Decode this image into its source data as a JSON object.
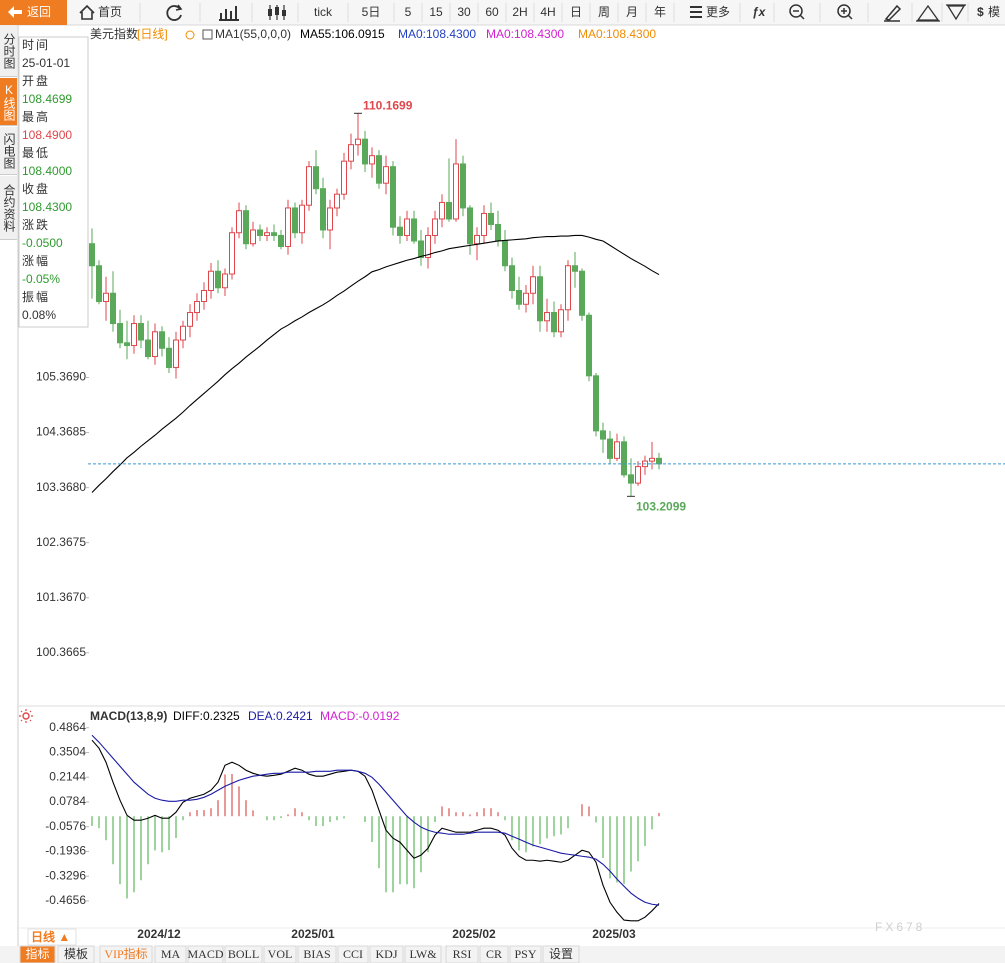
{
  "toolbar": {
    "back": "返回",
    "home": "首页",
    "periods": [
      "tick",
      "5日",
      "5",
      "15",
      "30",
      "60",
      "2H",
      "4H",
      "日",
      "周",
      "月",
      "年"
    ],
    "more": "更多",
    "extra": "模"
  },
  "side_tabs": [
    "分时图",
    "K线图",
    "闪电图",
    "合约资料"
  ],
  "side_tab_active": 1,
  "info_panel": [
    {
      "label": "时间",
      "value": "25-01-01",
      "color": "#333333"
    },
    {
      "label": "开盘",
      "value": "108.4699",
      "color": "#2e9a2e"
    },
    {
      "label": "最高",
      "value": "108.4900",
      "color": "#e0474c"
    },
    {
      "label": "最低",
      "value": "108.4000",
      "color": "#2e9a2e"
    },
    {
      "label": "收盘",
      "value": "108.4300",
      "color": "#2e9a2e"
    },
    {
      "label": "涨跌",
      "value": "-0.0500",
      "color": "#2e9a2e"
    },
    {
      "label": "涨幅",
      "value": "-0.05%",
      "color": "#2e9a2e"
    },
    {
      "label": "振幅",
      "value": "0.08%",
      "color": "#333333"
    }
  ],
  "chart_data": [
    {
      "type": "candlestick",
      "title": "美元指数",
      "period_label": "[日线]",
      "indicator": "MA1(55,0,0,0)",
      "up_color": "#e0474c",
      "down_color": "#5aa85a",
      "open": [
        107.8,
        107.4,
        106.75,
        106.9,
        106.35,
        106.0,
        105.95,
        106.35,
        106.05,
        105.75,
        106.2,
        105.9,
        105.55,
        106.05,
        106.3,
        106.55,
        106.75,
        106.95,
        107.3,
        107.0,
        107.25,
        108.0,
        108.4,
        107.8,
        108.05,
        107.95,
        108.0,
        107.95,
        107.75,
        108.45,
        108.0,
        108.5,
        109.2,
        108.8,
        108.05,
        108.45,
        108.7,
        109.3,
        109.6,
        109.7,
        109.25,
        109.4,
        108.9,
        109.2,
        108.1,
        107.95,
        108.25,
        107.85,
        107.55,
        107.95,
        108.25,
        108.55,
        108.25,
        109.25,
        108.45,
        107.8,
        107.95,
        108.35,
        108.15,
        107.85,
        107.4,
        106.95,
        106.7,
        106.9,
        107.2,
        106.4,
        106.55,
        106.2,
        106.6,
        107.4,
        107.3,
        106.5,
        105.4,
        104.4,
        104.25,
        103.9,
        104.2,
        103.6,
        103.45,
        103.75,
        103.85,
        103.9
      ],
      "high": [
        108.08,
        107.5,
        107.2,
        107.3,
        106.6,
        106.4,
        106.5,
        106.5,
        106.4,
        106.35,
        106.3,
        106.1,
        106.2,
        106.4,
        106.7,
        106.9,
        107.1,
        107.45,
        107.5,
        107.35,
        108.1,
        108.55,
        108.5,
        108.2,
        108.15,
        108.1,
        108.15,
        108.05,
        108.6,
        108.55,
        108.6,
        109.3,
        109.5,
        109.0,
        108.6,
        108.8,
        109.45,
        109.8,
        110.1699,
        109.85,
        109.55,
        109.5,
        109.4,
        109.3,
        108.3,
        108.4,
        108.4,
        108.05,
        108.1,
        108.4,
        108.7,
        109.35,
        109.7,
        109.4,
        108.5,
        108.1,
        108.5,
        108.55,
        108.4,
        108.05,
        107.55,
        107.2,
        107.05,
        107.4,
        107.4,
        106.8,
        106.75,
        106.7,
        107.5,
        107.65,
        107.35,
        106.55,
        105.45,
        104.55,
        104.4,
        104.35,
        104.3,
        103.9,
        103.85,
        103.95,
        104.2,
        104.0
      ],
      "low": [
        106.8,
        106.7,
        106.4,
        106.2,
        105.9,
        105.7,
        105.8,
        105.9,
        105.7,
        105.6,
        105.75,
        105.45,
        105.35,
        105.9,
        106.1,
        106.4,
        106.6,
        106.8,
        106.9,
        106.85,
        107.15,
        107.9,
        107.7,
        107.75,
        107.85,
        107.85,
        107.85,
        107.7,
        107.6,
        107.9,
        107.8,
        108.4,
        108.7,
        107.9,
        107.7,
        108.3,
        108.6,
        109.15,
        109.4,
        109.1,
        109.0,
        108.8,
        108.7,
        107.95,
        107.8,
        107.85,
        107.8,
        107.4,
        107.35,
        107.8,
        108.1,
        108.2,
        108.2,
        108.3,
        107.6,
        107.5,
        107.8,
        108.05,
        107.75,
        107.3,
        106.8,
        106.6,
        106.55,
        106.7,
        106.2,
        106.2,
        106.1,
        106.1,
        106.4,
        107.0,
        106.4,
        105.3,
        104.3,
        104.0,
        103.8,
        103.85,
        103.55,
        103.2099,
        103.4,
        103.6,
        103.7,
        103.7
      ],
      "close": [
        107.4,
        106.75,
        106.9,
        106.35,
        106.0,
        105.95,
        106.35,
        106.05,
        105.75,
        106.2,
        105.9,
        105.55,
        106.05,
        106.3,
        106.55,
        106.75,
        106.95,
        107.3,
        107.0,
        107.25,
        108.0,
        108.4,
        107.8,
        108.05,
        107.95,
        108.0,
        107.95,
        107.75,
        108.45,
        108.0,
        108.5,
        109.2,
        108.8,
        108.05,
        108.45,
        108.7,
        109.3,
        109.6,
        109.7,
        109.25,
        109.4,
        108.9,
        109.2,
        108.1,
        107.95,
        108.25,
        107.85,
        107.55,
        107.95,
        108.25,
        108.55,
        108.25,
        109.25,
        108.45,
        107.8,
        107.95,
        108.35,
        108.15,
        107.85,
        107.4,
        106.95,
        106.7,
        106.9,
        107.2,
        106.4,
        106.55,
        106.2,
        106.6,
        107.4,
        107.3,
        106.5,
        105.4,
        104.4,
        104.25,
        103.9,
        104.2,
        103.6,
        103.45,
        103.75,
        103.85,
        103.9,
        103.8
      ],
      "series": [
        {
          "name": "MA55:106.0915",
          "color": "#000000",
          "values": [
            103.28,
            103.41,
            103.53,
            103.66,
            103.78,
            103.91,
            104.01,
            104.12,
            104.22,
            104.32,
            104.43,
            104.53,
            104.63,
            104.74,
            104.86,
            104.97,
            105.08,
            105.19,
            105.3,
            105.42,
            105.53,
            105.63,
            105.74,
            105.84,
            105.94,
            106.05,
            106.15,
            106.25,
            106.32,
            106.4,
            106.47,
            106.55,
            106.62,
            106.69,
            106.77,
            106.86,
            106.94,
            107.03,
            107.12,
            107.2,
            107.29,
            107.33,
            107.38,
            107.42,
            107.46,
            107.5,
            107.53,
            107.57,
            107.6,
            107.64,
            107.67,
            107.71,
            107.73,
            107.75,
            107.77,
            107.79,
            107.81,
            107.83,
            107.85,
            107.86,
            107.87,
            107.88,
            107.89,
            107.91,
            107.92,
            107.93,
            107.93,
            107.94,
            107.94,
            107.95,
            107.95,
            107.92,
            107.88,
            107.85,
            107.77,
            107.69,
            107.61,
            107.53,
            107.46,
            107.39,
            107.31,
            107.24
          ]
        }
      ],
      "legend_extra": [
        {
          "name": "MA0:108.4300",
          "color": "#1f3fbf"
        },
        {
          "name": "MA0:108.4300",
          "color": "#d21fd2"
        },
        {
          "name": "MA0:108.4300",
          "color": "#f08c00"
        }
      ],
      "max_label": "110.1699",
      "min_label": "103.2099",
      "last_line_color": "#3a9bd5",
      "ylim": [
        99.4,
        111.72
      ],
      "yticks": [
        {
          "value": 105.369,
          "label": "105.3690"
        },
        {
          "value": 104.3685,
          "label": "104.3685"
        },
        {
          "value": 103.368,
          "label": "103.3680"
        },
        {
          "value": 102.3675,
          "label": "102.3675"
        },
        {
          "value": 101.367,
          "label": "101.3670"
        },
        {
          "value": 100.3665,
          "label": "100.3665"
        }
      ]
    },
    {
      "type": "macd",
      "title": "MACD(13,8,9)",
      "categories": [
        null,
        null,
        null,
        null,
        null,
        null,
        null,
        null,
        null,
        null,
        "2024/12",
        null,
        null,
        null,
        null,
        null,
        null,
        null,
        null,
        null,
        null,
        null,
        null,
        null,
        null,
        null,
        null,
        null,
        null,
        null,
        null,
        null,
        "2025/01",
        null,
        null,
        null,
        null,
        null,
        null,
        null,
        null,
        null,
        null,
        null,
        null,
        null,
        null,
        null,
        null,
        null,
        null,
        null,
        null,
        null,
        null,
        "2025/02",
        null,
        null,
        null,
        null,
        null,
        null,
        null,
        null,
        null,
        null,
        null,
        null,
        null,
        null,
        null,
        null,
        null,
        null,
        null,
        "2025/03",
        null,
        null,
        null,
        null,
        null,
        null
      ],
      "series": [
        {
          "name": "DIFF:0.2325",
          "color": "#000000",
          "values": [
            0.418,
            0.374,
            0.297,
            0.187,
            0.088,
            0.005,
            -0.022,
            -0.022,
            -0.011,
            0.005,
            -0.011,
            -0.011,
            0.022,
            0.077,
            0.099,
            0.11,
            0.121,
            0.143,
            0.187,
            0.28,
            0.297,
            0.28,
            0.253,
            0.236,
            0.225,
            0.22,
            0.225,
            0.231,
            0.247,
            0.264,
            0.253,
            0.231,
            0.22,
            0.22,
            0.231,
            0.242,
            0.247,
            0.253,
            0.247,
            0.22,
            0.143,
            0.033,
            -0.077,
            -0.121,
            -0.143,
            -0.187,
            -0.231,
            -0.214,
            -0.176,
            -0.104,
            -0.066,
            -0.077,
            -0.088,
            -0.088,
            -0.088,
            -0.077,
            -0.066,
            -0.066,
            -0.077,
            -0.104,
            -0.176,
            -0.22,
            -0.242,
            -0.242,
            -0.247,
            -0.242,
            -0.247,
            -0.253,
            -0.242,
            -0.214,
            -0.187,
            -0.198,
            -0.253,
            -0.379,
            -0.473,
            -0.528,
            -0.571,
            -0.575,
            -0.575,
            -0.555,
            -0.52,
            -0.48
          ]
        },
        {
          "name": "DEA:0.2421",
          "color": "#1a1aa6",
          "values": [
            0.445,
            0.407,
            0.363,
            0.319,
            0.275,
            0.231,
            0.187,
            0.154,
            0.121,
            0.099,
            0.088,
            0.082,
            0.082,
            0.088,
            0.088,
            0.093,
            0.104,
            0.121,
            0.143,
            0.165,
            0.181,
            0.198,
            0.209,
            0.22,
            0.225,
            0.231,
            0.236,
            0.236,
            0.242,
            0.242,
            0.242,
            0.242,
            0.247,
            0.247,
            0.247,
            0.253,
            0.253,
            0.253,
            0.247,
            0.236,
            0.214,
            0.176,
            0.132,
            0.088,
            0.044,
            0.0,
            -0.033,
            -0.06,
            -0.077,
            -0.088,
            -0.093,
            -0.099,
            -0.099,
            -0.099,
            -0.093,
            -0.088,
            -0.088,
            -0.088,
            -0.088,
            -0.093,
            -0.11,
            -0.126,
            -0.143,
            -0.159,
            -0.17,
            -0.181,
            -0.192,
            -0.203,
            -0.209,
            -0.214,
            -0.22,
            -0.225,
            -0.236,
            -0.264,
            -0.302,
            -0.346,
            -0.385,
            -0.423,
            -0.451,
            -0.473,
            -0.484,
            -0.489
          ]
        }
      ],
      "histogram": {
        "name": "MACD:-0.0192",
        "color": "#d21fd2",
        "up_color": "#d9534f",
        "down_color": "#5cb85c",
        "values": [
          -0.054,
          -0.066,
          -0.132,
          -0.264,
          -0.374,
          -0.452,
          -0.418,
          -0.352,
          -0.264,
          -0.188,
          -0.198,
          -0.186,
          -0.12,
          -0.022,
          0.022,
          0.034,
          0.034,
          0.044,
          0.088,
          0.23,
          0.232,
          0.164,
          0.088,
          0.032,
          0,
          -0.022,
          -0.022,
          -0.01,
          0.01,
          0.044,
          0.022,
          -0.022,
          -0.054,
          -0.054,
          -0.032,
          -0.022,
          -0.012,
          0,
          0,
          -0.032,
          -0.142,
          -0.286,
          -0.418,
          -0.418,
          -0.374,
          -0.374,
          -0.396,
          -0.308,
          -0.198,
          -0.032,
          0.054,
          0.044,
          0.022,
          0.022,
          0.01,
          0.022,
          0.044,
          0.044,
          0.022,
          -0.022,
          -0.132,
          -0.188,
          -0.198,
          -0.166,
          -0.154,
          -0.122,
          -0.11,
          -0.1,
          -0.066,
          0,
          0.066,
          0.054,
          -0.034,
          -0.23,
          -0.342,
          -0.364,
          -0.372,
          -0.304,
          -0.248,
          -0.164,
          -0.072,
          0.018
        ]
      },
      "ylim": [
        -0.598,
        0.584
      ],
      "yticks": [
        0.4864,
        0.3504,
        0.2144,
        0.0784,
        -0.0576,
        -0.1936,
        -0.3296,
        -0.4656
      ]
    }
  ],
  "bottom_bar": {
    "period": "日线 ▲",
    "tabs": [
      "指标",
      "模板",
      "VIP指标",
      "MA",
      "MACD",
      "BOLL",
      "VOL",
      "BIAS",
      "CCI",
      "KDJ",
      "LW&",
      "RSI",
      "CR",
      "PSY",
      "设置"
    ],
    "active": 0
  },
  "watermark": "FX678"
}
